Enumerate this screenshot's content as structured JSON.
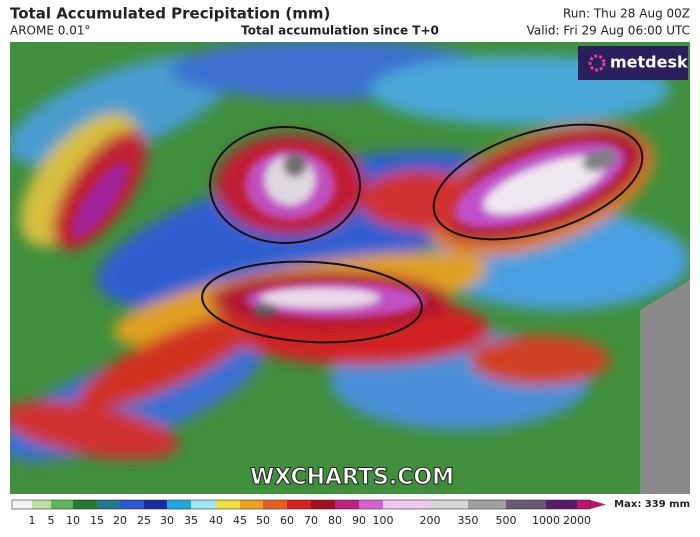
{
  "header": {
    "title": "Total Accumulated Precipitation (mm)",
    "model": "AROME 0.01°",
    "subtitle": "Total accumulation since T+0",
    "run": "Run: Thu 28 Aug 00Z",
    "valid": "Valid: Fri 29 Aug 06:00 UTC"
  },
  "logo": "metdesk",
  "watermark": "WXCHARTS.COM",
  "legend": {
    "labels": [
      1,
      5,
      10,
      15,
      20,
      25,
      30,
      35,
      40,
      45,
      50,
      60,
      70,
      80,
      90,
      100,
      200,
      350,
      500,
      1000,
      2000
    ],
    "max": "Max: 339 mm"
  }
}
